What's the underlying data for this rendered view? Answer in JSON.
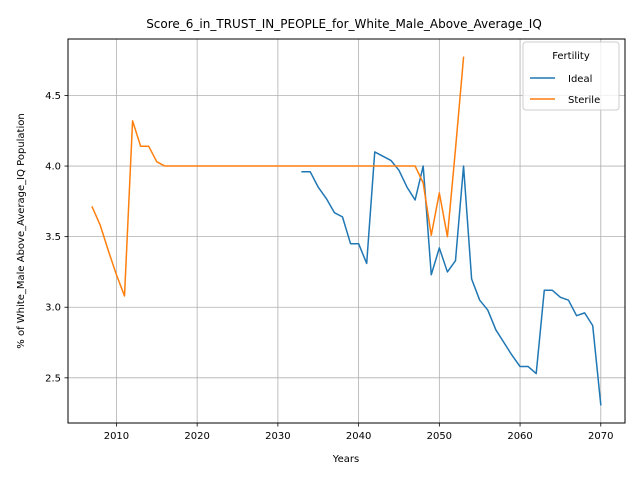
{
  "chart_data": {
    "type": "line",
    "title": "Score_6_in_TRUST_IN_PEOPLE_for_White_Male_Above_Average_IQ",
    "xlabel": "Years",
    "ylabel": "% of White_Male Above_Average_IQ Population",
    "xlim": [
      2004,
      2073
    ],
    "ylim": [
      2.18,
      4.9
    ],
    "xticks": [
      2010,
      2020,
      2030,
      2040,
      2050,
      2060,
      2070
    ],
    "yticks": [
      2.5,
      3.0,
      3.5,
      4.0,
      4.5
    ],
    "xtick_labels": [
      "2010",
      "2020",
      "2030",
      "2040",
      "2050",
      "2060",
      "2070"
    ],
    "ytick_labels": [
      "2.5",
      "3.0",
      "3.5",
      "4.0",
      "4.5"
    ],
    "grid": true,
    "legend": {
      "title": "Fertility",
      "position": "top-right"
    },
    "series": [
      {
        "name": "Ideal",
        "color": "#1f77b4",
        "x": [
          2033,
          2034,
          2035,
          2036,
          2037,
          2038,
          2039,
          2040,
          2041,
          2042,
          2043,
          2044,
          2045,
          2046,
          2047,
          2048,
          2049,
          2050,
          2051,
          2052,
          2053,
          2054,
          2055,
          2056,
          2057,
          2058,
          2059,
          2060,
          2061,
          2062,
          2063,
          2064,
          2065,
          2066,
          2067,
          2068,
          2069,
          2070
        ],
        "y": [
          3.96,
          3.96,
          3.85,
          3.77,
          3.67,
          3.64,
          3.45,
          3.45,
          3.31,
          4.1,
          4.07,
          4.04,
          3.97,
          3.85,
          3.76,
          4.0,
          3.23,
          3.42,
          3.25,
          3.33,
          4.0,
          3.2,
          3.05,
          2.98,
          2.84,
          2.75,
          2.66,
          2.58,
          2.58,
          2.53,
          3.12,
          3.12,
          3.07,
          3.05,
          2.94,
          2.96,
          2.87,
          2.31
        ]
      },
      {
        "name": "Sterile",
        "color": "#ff7f0e",
        "x": [
          2007,
          2008,
          2009,
          2010,
          2011,
          2012,
          2013,
          2014,
          2015,
          2016,
          2017,
          2020,
          2025,
          2030,
          2035,
          2040,
          2045,
          2046,
          2047,
          2048,
          2049,
          2050,
          2051,
          2052,
          2053
        ],
        "y": [
          3.71,
          3.58,
          3.4,
          3.23,
          3.08,
          4.32,
          4.14,
          4.14,
          4.03,
          4.0,
          4.0,
          4.0,
          4.0,
          4.0,
          4.0,
          4.0,
          4.0,
          4.0,
          4.0,
          3.88,
          3.51,
          3.81,
          3.5,
          4.12,
          4.77
        ]
      }
    ]
  }
}
